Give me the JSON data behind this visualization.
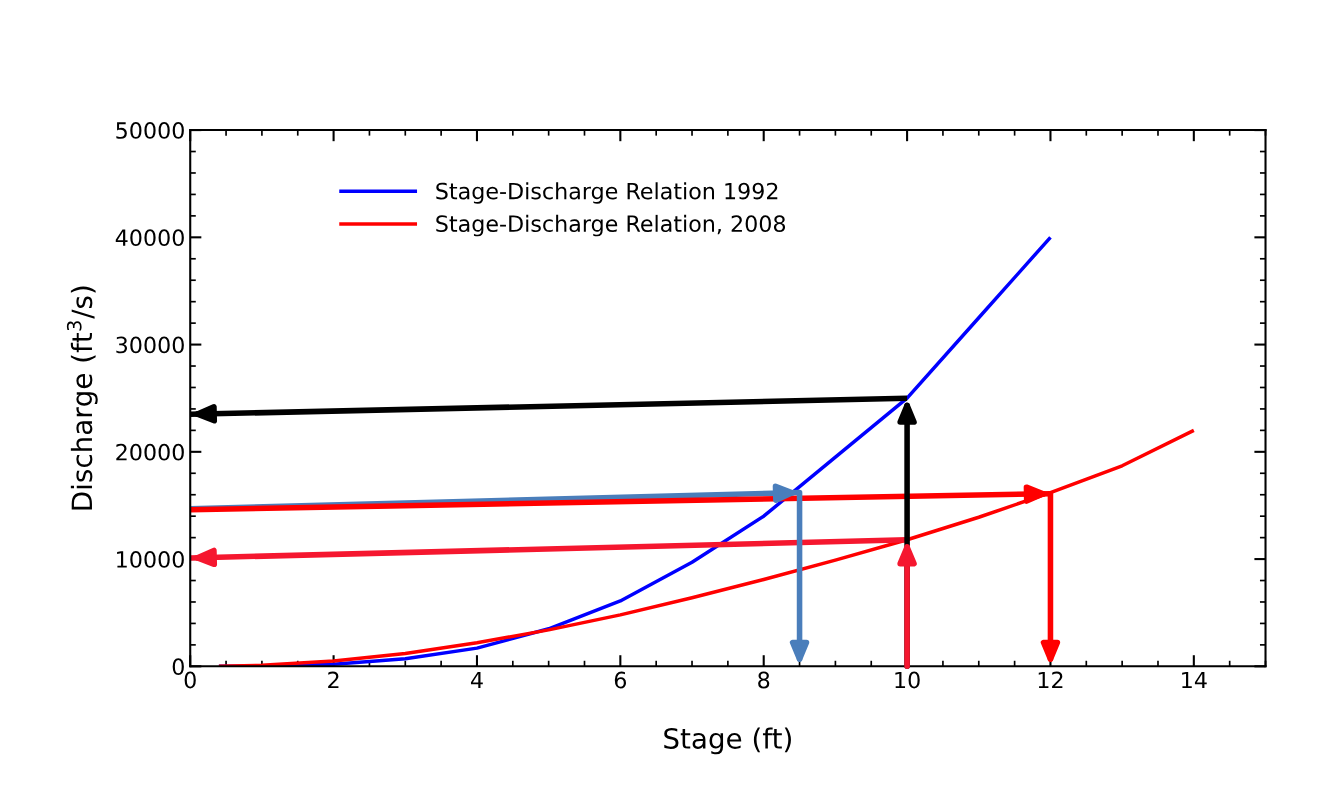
{
  "chart_data": {
    "type": "line",
    "xlabel": "Stage (ft)",
    "ylabel": "Discharge (ft$^{3}$/s)",
    "xlim": [
      0,
      15
    ],
    "xticks": [
      0,
      2,
      4,
      6,
      8,
      10,
      12,
      14
    ],
    "ylim": [
      0,
      50000
    ],
    "yticks": [
      0,
      10000,
      20000,
      30000,
      40000,
      50000
    ],
    "grid": false,
    "legend": "top left",
    "marker": "none",
    "line_style": "solid",
    "series": [
      {
        "name": "Stage-Discharge Relation 1992",
        "color": "#0000ff",
        "x": [
          0.4,
          1,
          2,
          3,
          4,
          5,
          6,
          7,
          8,
          9,
          10,
          11,
          12
        ],
        "values": [
          0,
          0,
          200,
          700,
          1700,
          3500,
          6100,
          9700,
          14000,
          19500,
          25000,
          32500,
          40000
        ]
      },
      {
        "name": "Stage-Discharge Relation, 2008",
        "color": "#ff0000",
        "x": [
          0.4,
          1,
          2,
          3,
          4,
          5,
          6,
          7,
          8,
          9,
          10,
          11,
          12,
          13,
          14
        ],
        "values": [
          0,
          100,
          500,
          1200,
          2200,
          3400,
          4800,
          6400,
          8100,
          9900,
          11800,
          13900,
          16200,
          18700,
          22000
        ]
      },
      {
        "color": "#000000",
        "x": [
          10,
          0
        ],
        "values": [
          25000,
          23500
        ]
      },
      {
        "color": "#f5172f",
        "x": [
          10,
          0
        ],
        "values": [
          11800,
          10100
        ]
      },
      {
        "color": "#4a7ebb",
        "x": [
          0,
          8.5
        ],
        "values": [
          14700,
          16200
        ]
      },
      {
        "color": "#ff0000",
        "x": [
          0,
          12
        ],
        "values": [
          14600,
          16100
        ]
      }
    ]
  }
}
